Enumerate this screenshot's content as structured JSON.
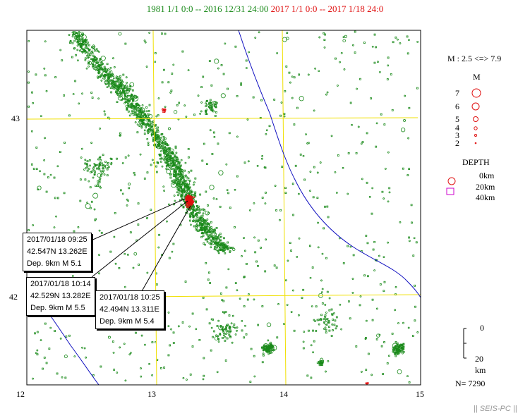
{
  "header": {
    "period_background": "1981 1/1 0:0 -- 2016 12/31 24:00",
    "period_recent": "2017 1/1 0:0 -- 2017 1/18 24:0"
  },
  "colors": {
    "background_quakes": "#1a8a1a",
    "recent_quakes": "#e01010",
    "grid": "#f0e000",
    "coastline": "#1010c0",
    "depth_40km_marker": "#cc00cc"
  },
  "axes": {
    "lat_labels": [
      "43",
      "42"
    ],
    "lon_labels": [
      "12",
      "13",
      "14",
      "15"
    ]
  },
  "legend": {
    "magnitude_range": "M : 2.5 <=> 7.9",
    "magnitude_title": "M",
    "magnitude_levels": [
      "7",
      "6",
      "5",
      "4",
      "3",
      "2"
    ],
    "depth_title": "DEPTH",
    "depth_levels": [
      "0km",
      "20km",
      "40km"
    ],
    "scale_top": "0",
    "scale_bottom": "20",
    "scale_unit": "km",
    "count": "N= 7290"
  },
  "events": [
    {
      "datetime": "2017/01/18 09:25",
      "location": "42.547N  13.262E",
      "detail": "Dep. 9km    M 5.1"
    },
    {
      "datetime": "2017/01/18 10:14",
      "location": "42.529N  13.282E",
      "detail": "Dep. 9km    M 5.5"
    },
    {
      "datetime": "2017/01/18 10:25",
      "location": "42.494N  13.311E",
      "detail": "Dep. 9km    M 5.4"
    }
  ],
  "footer": "|| SEIS-PC ||"
}
